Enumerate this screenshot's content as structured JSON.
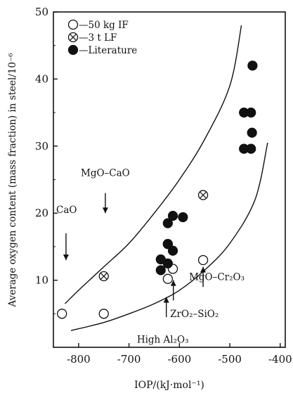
{
  "chart_data": {
    "type": "scatter",
    "title": "",
    "xlabel": "IOP/(kJ·mol⁻¹)",
    "ylabel": "Average oxygen content (mass fraction) in steel/10⁻⁶",
    "xlim": [
      -850,
      -390
    ],
    "ylim": [
      0,
      50
    ],
    "xticks": [
      "-800",
      "-700",
      "-600",
      "-500",
      "-400"
    ],
    "yticks": [
      "10",
      "20",
      "30",
      "40",
      "50"
    ],
    "grid": false,
    "legend": {
      "placement": "top-left",
      "entries": [
        {
          "marker": "open-circle",
          "label": "—50 kg IF"
        },
        {
          "marker": "circle-x",
          "label": "—3 t LF"
        },
        {
          "marker": "filled-circle",
          "label": "—Literature"
        }
      ]
    },
    "series": [
      {
        "name": "50 kg IF",
        "marker": "open-circle",
        "x": [
          -833,
          -750,
          -623,
          -613,
          -553
        ],
        "y": [
          5.0,
          5.0,
          10.2,
          11.7,
          13.0
        ]
      },
      {
        "name": "3 t LF",
        "marker": "circle-x",
        "x": [
          -750,
          -623,
          -553
        ],
        "y": [
          10.6,
          15.4,
          22.7
        ]
      },
      {
        "name": "Literature",
        "marker": "filled-circle",
        "x": [
          -637,
          -637,
          -623,
          -623,
          -613,
          -613,
          -623,
          -593,
          -472,
          -458,
          -472,
          -458,
          -456,
          -455
        ],
        "y": [
          11.5,
          13.1,
          12.5,
          18.5,
          19.6,
          14.4,
          15.4,
          19.4,
          35.0,
          35.0,
          29.6,
          29.6,
          32.0,
          42.0
        ]
      }
    ],
    "curves": [
      {
        "name": "upper",
        "x": [
          -827,
          -800,
          -750,
          -700,
          -650,
          -600,
          -550,
          -500,
          -477
        ],
        "y": [
          6.5,
          8.5,
          12.0,
          15.5,
          20.0,
          25.0,
          31.0,
          39.0,
          48.0
        ]
      },
      {
        "name": "lower",
        "x": [
          -815,
          -750,
          -700,
          -650,
          -600,
          -550,
          -500,
          -450,
          -425
        ],
        "y": [
          2.5,
          3.7,
          5.0,
          6.5,
          8.5,
          11.5,
          15.5,
          22.0,
          30.5
        ]
      }
    ],
    "annotations": [
      {
        "id": "cao",
        "text": "CaO",
        "x": -825,
        "y": 20.0,
        "arrow_from_y": 17.0,
        "arrow_to_y": 13.0
      },
      {
        "id": "mgocao",
        "text": "MgO–CaO",
        "x": -747,
        "y": 25.5,
        "arrow_from_y": 23.0,
        "arrow_to_y": 20.0
      },
      {
        "id": "mgocr",
        "text": "MgO–Cr₂O₃",
        "x": -553,
        "y": 10.0,
        "arrow_from_y": 9.0,
        "arrow_to_y": 12.0
      },
      {
        "id": "zro",
        "text": "ZrO₂–SiO₂",
        "x": -610,
        "y": 4.5,
        "arrow_from_y": 7.0,
        "arrow_to_y": 10.0
      },
      {
        "id": "hal",
        "text": "High Al₂O₃",
        "x": -633,
        "y": 0.7,
        "arrow_from_y": 4.5,
        "arrow_to_y": 7.5
      }
    ]
  }
}
